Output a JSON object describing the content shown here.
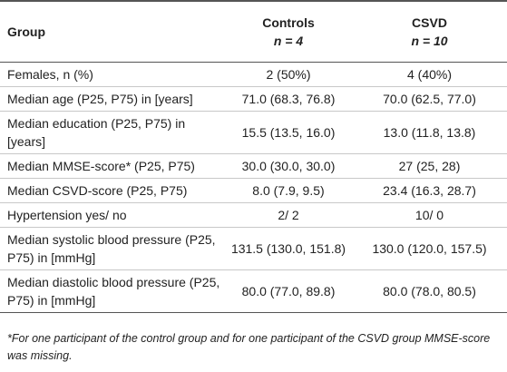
{
  "table": {
    "header": [
      "Group",
      [
        "Controls",
        "n = 4"
      ],
      [
        "CSVD",
        "n = 10"
      ]
    ],
    "rows": [
      [
        "Females, n (%)",
        "2 (50%)",
        "4 (40%)"
      ],
      [
        "Median age (P25, P75) in [years]",
        "71.0 (68.3, 76.8)",
        "70.0 (62.5, 77.0)"
      ],
      [
        "Median education (P25, P75) in [years]",
        "15.5 (13.5, 16.0)",
        "13.0 (11.8, 13.8)"
      ],
      [
        "Median MMSE-score* (P25, P75)",
        "30.0 (30.0, 30.0)",
        "27 (25, 28)"
      ],
      [
        "Median CSVD-score (P25, P75)",
        "8.0 (7.9, 9.5)",
        "23.4 (16.3, 28.7)"
      ],
      [
        "Hypertension yes/ no",
        "2/ 2",
        "10/ 0"
      ],
      [
        "Median systolic blood pressure (P25, P75) in [mmHg]",
        "131.5 (130.0, 151.8)",
        "130.0 (120.0, 157.5)"
      ],
      [
        "Median diastolic blood pressure (P25, P75) in [mmHg]",
        "80.0 (77.0, 89.8)",
        "80.0 (78.0, 80.5)"
      ]
    ],
    "footnote": "*For one participant of the control group and for one participant of the CSVD group MMSE-score was missing."
  }
}
